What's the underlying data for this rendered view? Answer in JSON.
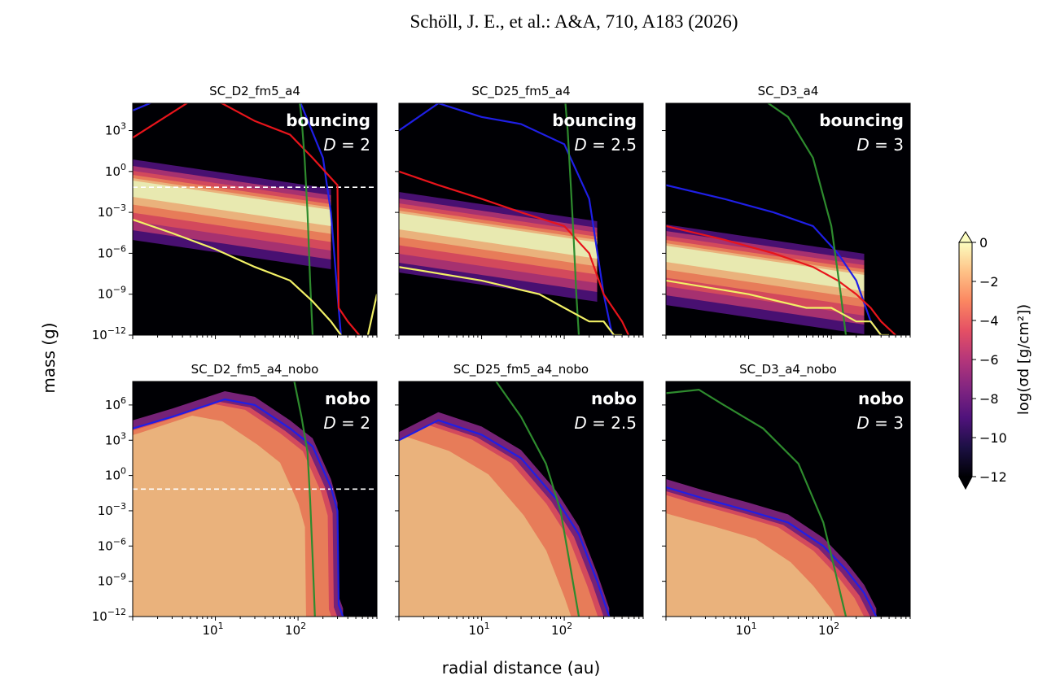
{
  "header": {
    "citation": "Schöll, J. E., et al.: A&A, 710, A183  (2026)"
  },
  "figure": {
    "xlabel": "radial distance (au)",
    "ylabel": "mass (g)",
    "colorbar": {
      "label": "log(σd [g/cm²])",
      "ticks": [
        "0",
        "−2",
        "−4",
        "−6",
        "−8",
        "−10",
        "−12"
      ],
      "range": [
        -12,
        0
      ],
      "extend": "both",
      "colormap": "magma"
    },
    "line_colors": {
      "blue": "#1f1fe6",
      "red": "#e8141b",
      "green": "#2e8b2e",
      "yellow": "#f2f066",
      "dashed": "#ffffff"
    }
  },
  "chart_data": [
    {
      "type": "heatmap",
      "title": "SC_D2_fm5_a4",
      "annotation": [
        "bouncing",
        "D = 2"
      ],
      "xscale": "log",
      "yscale": "log",
      "xlim": [
        1,
        900
      ],
      "ylim": [
        1e-12,
        100000.0
      ],
      "yticks": [
        "10^3",
        "10^0",
        "10^-3",
        "10^-6",
        "10^-9",
        "10^-12"
      ],
      "xticks": [],
      "dashed_hline": 0.07,
      "series": [
        {
          "color": "blue",
          "x": [
            1,
            2.5,
            7,
            15,
            30,
            60,
            100,
            200,
            250,
            300,
            330
          ],
          "y": [
            30000.0,
            300000.0,
            1000000.0,
            1000000.0,
            1000000.0,
            800000.0,
            300000.0,
            10.0,
            0.001,
            1e-09,
            1e-12
          ]
        },
        {
          "color": "red",
          "x": [
            1,
            6,
            12,
            30,
            80,
            150,
            300,
            310,
            400,
            550
          ],
          "y": [
            300.0,
            300000.0,
            100000.0,
            5000.0,
            500.0,
            10.0,
            0.1,
            1e-10,
            1e-11,
            1e-12
          ]
        },
        {
          "color": "green",
          "x": [
            100,
            110,
            120,
            130,
            140,
            150
          ],
          "y": [
            1000000.0,
            10000.0,
            10.0,
            0.001,
            1e-08,
            1e-12
          ]
        },
        {
          "color": "yellow",
          "x": [
            1,
            3,
            10,
            30,
            80,
            150,
            250,
            330
          ],
          "y": [
            0.0003,
            3e-05,
            2e-06,
            1e-07,
            1e-08,
            3e-10,
            1e-11,
            1e-12
          ]
        },
        {
          "color": "yellow",
          "x": [
            700,
            900
          ],
          "y": [
            1e-12,
            1e-09
          ]
        }
      ]
    },
    {
      "type": "heatmap",
      "title": "SC_D25_fm5_a4",
      "annotation": [
        "bouncing",
        "D = 2.5"
      ],
      "xscale": "log",
      "yscale": "log",
      "xlim": [
        1,
        900
      ],
      "ylim": [
        1e-12,
        100000.0
      ],
      "yticks": [],
      "xticks": [],
      "series": [
        {
          "color": "blue",
          "x": [
            1,
            3,
            10,
            30,
            100,
            200,
            300,
            380
          ],
          "y": [
            1000.0,
            100000.0,
            10000.0,
            3000.0,
            100.0,
            0.01,
            1e-09,
            1e-12
          ]
        },
        {
          "color": "red",
          "x": [
            1,
            3,
            10,
            30,
            100,
            200,
            300,
            500,
            600
          ],
          "y": [
            1.0,
            0.1,
            0.01,
            0.001,
            0.0001,
            1e-06,
            1e-09,
            1e-11,
            1e-12
          ]
        },
        {
          "color": "green",
          "x": [
            100,
            110,
            120,
            130,
            140,
            150
          ],
          "y": [
            1000000.0,
            1000.0,
            0.1,
            1e-05,
            1e-09,
            1e-12
          ]
        },
        {
          "color": "yellow",
          "x": [
            1,
            10,
            50,
            100,
            200,
            300,
            400,
            500
          ],
          "y": [
            1e-07,
            1e-08,
            1e-09,
            1e-10,
            1e-11,
            1e-11,
            1e-12,
            1e-12
          ]
        }
      ]
    },
    {
      "type": "heatmap",
      "title": "SC_D3_a4",
      "annotation": [
        "bouncing",
        "D = 3"
      ],
      "xscale": "log",
      "yscale": "log",
      "xlim": [
        1,
        900
      ],
      "ylim": [
        1e-12,
        100000.0
      ],
      "yticks": [],
      "xticks": [],
      "series": [
        {
          "color": "blue",
          "x": [
            1,
            5,
            20,
            60,
            120,
            200,
            300,
            400
          ],
          "y": [
            0.1,
            0.01,
            0.001,
            0.0001,
            1e-06,
            1e-08,
            1e-11,
            1e-12
          ]
        },
        {
          "color": "red",
          "x": [
            1,
            5,
            20,
            60,
            120,
            200,
            300,
            400,
            600
          ],
          "y": [
            0.0001,
            1e-05,
            1e-06,
            1e-07,
            1e-08,
            1e-09,
            1e-10,
            1e-11,
            1e-12
          ]
        },
        {
          "color": "green",
          "x": [
            10,
            30,
            60,
            100,
            130,
            150
          ],
          "y": [
            1000000.0,
            10000.0,
            10.0,
            0.0001,
            1e-09,
            1e-12
          ]
        },
        {
          "color": "yellow",
          "x": [
            1,
            10,
            50,
            100,
            200,
            300,
            400,
            500
          ],
          "y": [
            1e-08,
            1e-09,
            1e-10,
            1e-10,
            1e-11,
            1e-11,
            1e-12,
            1e-12
          ]
        }
      ]
    },
    {
      "type": "heatmap",
      "title": "SC_D2_fm5_a4_nobo",
      "annotation": [
        "nobo",
        "D = 2"
      ],
      "xscale": "log",
      "yscale": "log",
      "xlim": [
        1,
        900
      ],
      "ylim": [
        1e-12,
        100000000.0
      ],
      "yticks": [
        "10^6",
        "10^3",
        "10^0",
        "10^-3",
        "10^-6",
        "10^-9",
        "10^-12"
      ],
      "xticks": [
        "10^1",
        "10^2"
      ],
      "dashed_hline": 0.07,
      "series": [
        {
          "color": "blue",
          "x": [
            1,
            3,
            13,
            30,
            80,
            150,
            250,
            300,
            310,
            350
          ],
          "y": [
            10000.0,
            100000.0,
            3000000.0,
            1000000.0,
            10000.0,
            300.0,
            0.1,
            0.001,
            1e-11,
            1e-12
          ]
        },
        {
          "color": "green",
          "x": [
            90,
            110,
            130,
            140,
            150,
            160
          ],
          "y": [
            100000000.0,
            100000.0,
            100.0,
            0.01,
            1e-07,
            1e-12
          ]
        }
      ]
    },
    {
      "type": "heatmap",
      "title": "SC_D25_fm5_a4_nobo",
      "annotation": [
        "nobo",
        "D = 2.5"
      ],
      "xscale": "log",
      "yscale": "log",
      "xlim": [
        1,
        900
      ],
      "ylim": [
        1e-12,
        100000000.0
      ],
      "yticks": [],
      "xticks": [
        "10^1",
        "10^2"
      ],
      "series": [
        {
          "color": "blue",
          "x": [
            1,
            3,
            10,
            30,
            80,
            150,
            250,
            350
          ],
          "y": [
            1000.0,
            50000.0,
            3000.0,
            30.0,
            0.01,
            1e-05,
            1e-09,
            1e-12
          ]
        },
        {
          "color": "green",
          "x": [
            15,
            30,
            60,
            90,
            120,
            150
          ],
          "y": [
            100000000.0,
            100000.0,
            10.0,
            0.001,
            1e-08,
            1e-12
          ]
        }
      ]
    },
    {
      "type": "heatmap",
      "title": "SC_D3_a4_nobo",
      "annotation": [
        "nobo",
        "D = 3"
      ],
      "xscale": "log",
      "yscale": "log",
      "xlim": [
        1,
        900
      ],
      "ylim": [
        1e-12,
        100000000.0
      ],
      "yticks": [],
      "xticks": [
        "10^1",
        "10^2"
      ],
      "series": [
        {
          "color": "blue",
          "x": [
            1,
            3,
            10,
            30,
            80,
            150,
            250,
            350
          ],
          "y": [
            0.1,
            0.01,
            0.001,
            0.0001,
            1e-06,
            1e-08,
            1e-10,
            1e-12
          ]
        },
        {
          "color": "green",
          "x": [
            1,
            2.5,
            5,
            15,
            40,
            80,
            110,
            150
          ],
          "y": [
            10000000.0,
            20000000.0,
            1000000.0,
            10000.0,
            10.0,
            0.0001,
            1e-08,
            1e-12
          ]
        }
      ]
    }
  ]
}
